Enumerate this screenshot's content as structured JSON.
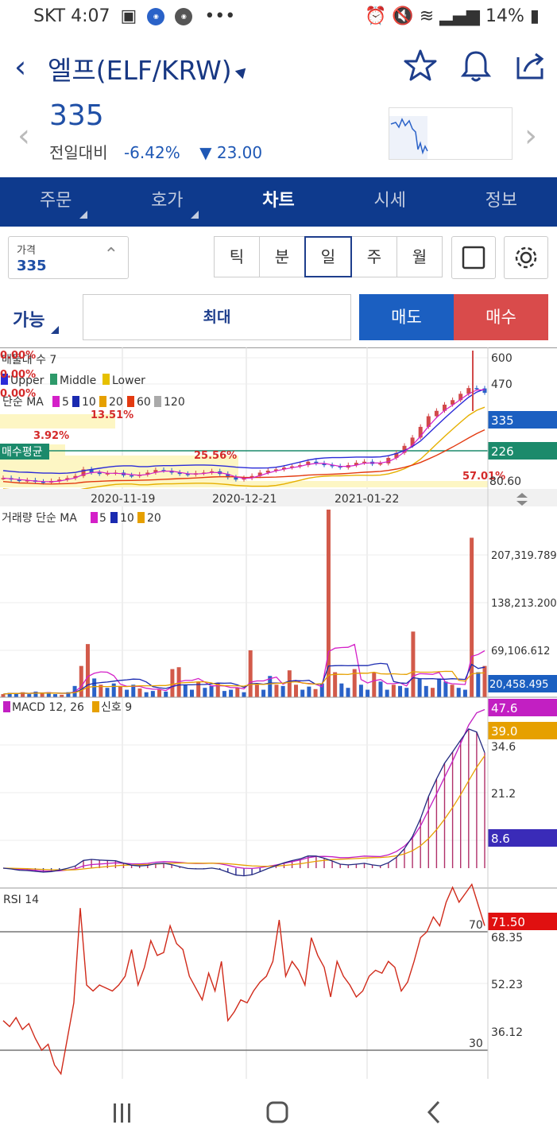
{
  "status": {
    "carrier": "SKT",
    "time": "4:07",
    "battery": "14%"
  },
  "header": {
    "title": "엘프(ELF/KRW)"
  },
  "quote": {
    "price": "335",
    "change_label": "전일대비",
    "change_pct": "-6.42%",
    "change_arrow": "▼",
    "change_val": "23.00"
  },
  "tabs": [
    {
      "label": "주문"
    },
    {
      "label": "호가"
    },
    {
      "label": "차트"
    },
    {
      "label": "시세"
    },
    {
      "label": "정보"
    }
  ],
  "price_field": {
    "label": "가격",
    "value": "335"
  },
  "periods": [
    "틱",
    "분",
    "일",
    "주",
    "월"
  ],
  "order": {
    "mode": "가능",
    "qty": "최대",
    "sell": "매도",
    "buy": "매수"
  },
  "chart_data": [
    {
      "type": "candlestick",
      "title": "매물대 수 7",
      "legend": [
        "Upper",
        "Middle",
        "Lower",
        "단순 MA",
        "5",
        "10",
        "20",
        "60",
        "120"
      ],
      "y_ticks": [
        "600",
        "470",
        "80.60"
      ],
      "last_price": "335",
      "avg_buy": "226",
      "avg_buy_label": "매수평균",
      "x_ticks": [
        "2020-11-19",
        "2020-12-21",
        "2021-01-22"
      ],
      "profile_labels": [
        "0.00%",
        "0.00%",
        "0.00%",
        "13.51%",
        "3.92%",
        "25.56%",
        "57.01%"
      ],
      "close": [
        92,
        90,
        88,
        89,
        87,
        86,
        88,
        90,
        92,
        95,
        105,
        100,
        98,
        99,
        100,
        96,
        95,
        97,
        100,
        104,
        103,
        100,
        98,
        97,
        99,
        100,
        102,
        98,
        93,
        90,
        92,
        95,
        100,
        103,
        105,
        108,
        110,
        112,
        118,
        115,
        112,
        110,
        108,
        112,
        116,
        118,
        114,
        115,
        125,
        135,
        150,
        170,
        200,
        235,
        255,
        280,
        300,
        330,
        360,
        358,
        335
      ]
    },
    {
      "type": "bar",
      "title": "거래량 단순 MA",
      "legend": [
        "5",
        "10",
        "20"
      ],
      "y_ticks": [
        "207,319.789",
        "138,213.200",
        "69,106.612"
      ],
      "last_value": "20,458.495",
      "values": [
        5,
        7,
        6,
        8,
        5,
        9,
        6,
        8,
        5,
        4,
        8,
        18,
        50,
        85,
        30,
        20,
        15,
        22,
        18,
        12,
        20,
        14,
        8,
        10,
        12,
        9,
        45,
        48,
        20,
        12,
        25,
        15,
        18,
        22,
        10,
        12,
        15,
        8,
        75,
        20,
        12,
        34,
        20,
        18,
        43,
        20,
        12,
        17,
        13,
        22,
        300,
        40,
        22,
        15,
        45,
        20,
        12,
        40,
        25,
        12,
        20,
        18,
        15,
        105,
        30,
        18,
        15,
        30,
        25,
        20,
        15,
        12,
        255,
        40,
        50
      ]
    },
    {
      "type": "line",
      "title": "MACD 12, 26",
      "legend": [
        "신호 9"
      ],
      "y_ticks": [
        "34.6",
        "21.2"
      ],
      "last_macd": "47.6",
      "last_signal": "39.0",
      "last_hist": "8.6"
    },
    {
      "type": "line",
      "title": "RSI 14",
      "y_ticks": [
        "68.35",
        "52.23",
        "36.12"
      ],
      "levels": [
        "70",
        "30"
      ],
      "last_value": "71.50",
      "values": [
        40,
        38,
        41,
        37,
        39,
        34,
        30,
        32,
        25,
        22,
        34,
        46,
        78,
        52,
        50,
        52,
        51,
        50,
        52,
        55,
        64,
        52,
        58,
        67,
        62,
        63,
        72,
        66,
        64,
        55,
        51,
        47,
        56,
        50,
        60,
        40,
        43,
        47,
        46,
        50,
        53,
        55,
        60,
        74,
        55,
        60,
        57,
        52,
        68,
        62,
        58,
        48,
        60,
        55,
        52,
        48,
        50,
        55,
        57,
        56,
        60,
        58,
        50,
        53,
        60,
        68,
        70,
        75,
        72,
        80,
        85,
        80,
        83,
        86,
        79,
        72
      ]
    }
  ]
}
